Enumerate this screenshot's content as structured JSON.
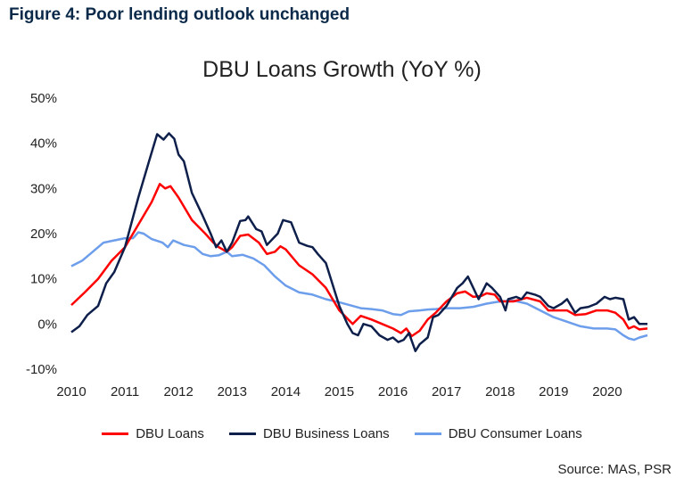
{
  "figure_title": "Figure 4: Poor lending outlook unchanged",
  "source": "Source: MAS, PSR",
  "chart_data": {
    "type": "line",
    "title": "DBU Loans Growth (YoY %)",
    "xlabel": "",
    "ylabel": "",
    "xlim": [
      2010,
      2020.75
    ],
    "ylim": [
      -10,
      50
    ],
    "x_ticks": [
      "2010",
      "2011",
      "2012",
      "2013",
      "2014",
      "2015",
      "2016",
      "2017",
      "2018",
      "2019",
      "2020"
    ],
    "y_ticks": [
      "-10%",
      "0%",
      "10%",
      "20%",
      "30%",
      "40%",
      "50%"
    ],
    "legend_position": "bottom",
    "grid": false,
    "series": [
      {
        "name": "DBU Loans",
        "color": "#ff0000",
        "points": [
          [
            2010.0,
            4.2
          ],
          [
            2010.25,
            7
          ],
          [
            2010.5,
            10
          ],
          [
            2010.75,
            14
          ],
          [
            2011.0,
            17
          ],
          [
            2011.25,
            22
          ],
          [
            2011.5,
            27
          ],
          [
            2011.65,
            31
          ],
          [
            2011.75,
            30
          ],
          [
            2011.85,
            30.5
          ],
          [
            2012.0,
            28
          ],
          [
            2012.25,
            23
          ],
          [
            2012.5,
            20
          ],
          [
            2012.65,
            18
          ],
          [
            2012.75,
            17
          ],
          [
            2012.9,
            16
          ],
          [
            2013.0,
            17
          ],
          [
            2013.15,
            19.5
          ],
          [
            2013.3,
            19.8
          ],
          [
            2013.5,
            18
          ],
          [
            2013.65,
            15.5
          ],
          [
            2013.8,
            16
          ],
          [
            2013.9,
            17.2
          ],
          [
            2014.0,
            16.5
          ],
          [
            2014.25,
            13
          ],
          [
            2014.5,
            11
          ],
          [
            2014.75,
            8
          ],
          [
            2015.0,
            3
          ],
          [
            2015.25,
            0
          ],
          [
            2015.4,
            1.8
          ],
          [
            2015.6,
            1
          ],
          [
            2015.8,
            0
          ],
          [
            2016.0,
            -1
          ],
          [
            2016.15,
            -2
          ],
          [
            2016.25,
            -1
          ],
          [
            2016.35,
            -2.7
          ],
          [
            2016.5,
            -1.5
          ],
          [
            2016.65,
            1
          ],
          [
            2016.8,
            2.5
          ],
          [
            2017.0,
            5
          ],
          [
            2017.2,
            6.8
          ],
          [
            2017.35,
            7.2
          ],
          [
            2017.5,
            6
          ],
          [
            2017.65,
            6.2
          ],
          [
            2017.75,
            6.8
          ],
          [
            2017.9,
            6.5
          ],
          [
            2018.0,
            5
          ],
          [
            2018.25,
            5
          ],
          [
            2018.5,
            5.8
          ],
          [
            2018.75,
            5
          ],
          [
            2018.9,
            3
          ],
          [
            2019.0,
            3
          ],
          [
            2019.25,
            3
          ],
          [
            2019.4,
            2
          ],
          [
            2019.6,
            2.2
          ],
          [
            2019.8,
            3
          ],
          [
            2020.0,
            3
          ],
          [
            2020.15,
            2.5
          ],
          [
            2020.3,
            1
          ],
          [
            2020.4,
            -1
          ],
          [
            2020.5,
            -0.5
          ],
          [
            2020.6,
            -1.2
          ],
          [
            2020.75,
            -1
          ]
        ]
      },
      {
        "name": "DBU Business Loans",
        "color": "#0d1f4a",
        "points": [
          [
            2010.0,
            -1.8
          ],
          [
            2010.15,
            -0.5
          ],
          [
            2010.3,
            2
          ],
          [
            2010.5,
            4
          ],
          [
            2010.65,
            9
          ],
          [
            2010.8,
            11.5
          ],
          [
            2011.0,
            17
          ],
          [
            2011.25,
            28
          ],
          [
            2011.45,
            36
          ],
          [
            2011.6,
            42
          ],
          [
            2011.72,
            40.8
          ],
          [
            2011.82,
            42.2
          ],
          [
            2011.92,
            41
          ],
          [
            2012.0,
            37.5
          ],
          [
            2012.1,
            36
          ],
          [
            2012.25,
            29
          ],
          [
            2012.45,
            24
          ],
          [
            2012.6,
            20
          ],
          [
            2012.7,
            17
          ],
          [
            2012.8,
            18.5
          ],
          [
            2012.9,
            16
          ],
          [
            2013.0,
            18
          ],
          [
            2013.15,
            22.8
          ],
          [
            2013.25,
            23
          ],
          [
            2013.3,
            23.8
          ],
          [
            2013.45,
            21
          ],
          [
            2013.55,
            20.5
          ],
          [
            2013.65,
            17.5
          ],
          [
            2013.85,
            20
          ],
          [
            2013.95,
            23
          ],
          [
            2014.1,
            22.5
          ],
          [
            2014.25,
            18
          ],
          [
            2014.4,
            17.3
          ],
          [
            2014.5,
            17
          ],
          [
            2014.6,
            15.5
          ],
          [
            2014.75,
            13.5
          ],
          [
            2015.0,
            4
          ],
          [
            2015.15,
            0
          ],
          [
            2015.25,
            -2
          ],
          [
            2015.35,
            -2.5
          ],
          [
            2015.45,
            0
          ],
          [
            2015.6,
            -0.5
          ],
          [
            2015.75,
            -2.5
          ],
          [
            2015.9,
            -3.5
          ],
          [
            2016.0,
            -3
          ],
          [
            2016.1,
            -4
          ],
          [
            2016.2,
            -3.5
          ],
          [
            2016.3,
            -2
          ],
          [
            2016.42,
            -6
          ],
          [
            2016.5,
            -4.5
          ],
          [
            2016.65,
            -3
          ],
          [
            2016.75,
            1.5
          ],
          [
            2016.85,
            2
          ],
          [
            2017.0,
            4
          ],
          [
            2017.1,
            6
          ],
          [
            2017.2,
            8
          ],
          [
            2017.3,
            9
          ],
          [
            2017.4,
            10.5
          ],
          [
            2017.5,
            8
          ],
          [
            2017.6,
            5.5
          ],
          [
            2017.75,
            9
          ],
          [
            2017.85,
            8
          ],
          [
            2018.0,
            6
          ],
          [
            2018.1,
            3
          ],
          [
            2018.15,
            5.5
          ],
          [
            2018.3,
            6
          ],
          [
            2018.4,
            5.5
          ],
          [
            2018.5,
            7
          ],
          [
            2018.65,
            6.5
          ],
          [
            2018.75,
            6
          ],
          [
            2018.9,
            4
          ],
          [
            2019.0,
            3.5
          ],
          [
            2019.15,
            4.5
          ],
          [
            2019.25,
            5.5
          ],
          [
            2019.4,
            2.5
          ],
          [
            2019.5,
            3.5
          ],
          [
            2019.65,
            3.8
          ],
          [
            2019.8,
            4.5
          ],
          [
            2019.95,
            6
          ],
          [
            2020.05,
            5.5
          ],
          [
            2020.15,
            5.8
          ],
          [
            2020.3,
            5.5
          ],
          [
            2020.4,
            1
          ],
          [
            2020.5,
            1.5
          ],
          [
            2020.6,
            0
          ],
          [
            2020.75,
            0
          ]
        ]
      },
      {
        "name": "DBU Consumer Loans",
        "color": "#6d9eeb",
        "points": [
          [
            2010.0,
            12.8
          ],
          [
            2010.2,
            14
          ],
          [
            2010.4,
            16
          ],
          [
            2010.6,
            18
          ],
          [
            2010.8,
            18.5
          ],
          [
            2011.0,
            19
          ],
          [
            2011.15,
            19
          ],
          [
            2011.25,
            20.3
          ],
          [
            2011.35,
            20
          ],
          [
            2011.5,
            18.8
          ],
          [
            2011.7,
            18
          ],
          [
            2011.8,
            17
          ],
          [
            2011.9,
            18.5
          ],
          [
            2012.1,
            17.5
          ],
          [
            2012.3,
            17
          ],
          [
            2012.45,
            15.5
          ],
          [
            2012.6,
            15
          ],
          [
            2012.75,
            15.2
          ],
          [
            2012.9,
            16
          ],
          [
            2013.0,
            15
          ],
          [
            2013.2,
            15.3
          ],
          [
            2013.4,
            14.5
          ],
          [
            2013.6,
            13
          ],
          [
            2013.8,
            10.5
          ],
          [
            2014.0,
            8.5
          ],
          [
            2014.25,
            7
          ],
          [
            2014.5,
            6.5
          ],
          [
            2014.75,
            5.5
          ],
          [
            2015.0,
            4.8
          ],
          [
            2015.25,
            4
          ],
          [
            2015.4,
            3.5
          ],
          [
            2015.6,
            3.3
          ],
          [
            2015.8,
            3
          ],
          [
            2016.0,
            2.2
          ],
          [
            2016.15,
            2
          ],
          [
            2016.3,
            2.8
          ],
          [
            2016.5,
            3
          ],
          [
            2016.65,
            3.2
          ],
          [
            2016.8,
            3.3
          ],
          [
            2017.0,
            3.5
          ],
          [
            2017.25,
            3.5
          ],
          [
            2017.5,
            3.8
          ],
          [
            2017.75,
            4.5
          ],
          [
            2018.0,
            5
          ],
          [
            2018.25,
            5.2
          ],
          [
            2018.5,
            4.5
          ],
          [
            2018.75,
            3
          ],
          [
            2019.0,
            1.5
          ],
          [
            2019.25,
            0.5
          ],
          [
            2019.5,
            -0.5
          ],
          [
            2019.75,
            -1
          ],
          [
            2020.0,
            -1
          ],
          [
            2020.15,
            -1.2
          ],
          [
            2020.3,
            -2.5
          ],
          [
            2020.4,
            -3.2
          ],
          [
            2020.5,
            -3.5
          ],
          [
            2020.6,
            -3
          ],
          [
            2020.75,
            -2.5
          ]
        ]
      }
    ]
  }
}
